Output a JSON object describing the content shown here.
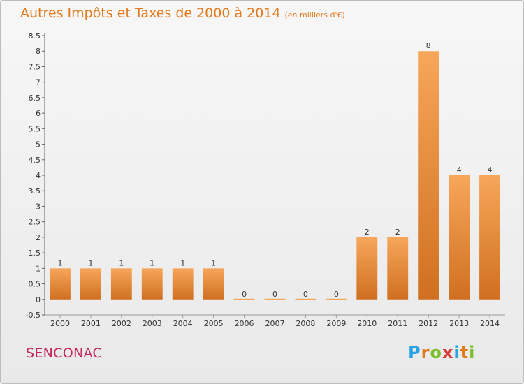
{
  "header": {
    "title": "Autres Impôts et Taxes de 2000 à 2014",
    "unit": "(en milliers d'€)"
  },
  "footer": {
    "commune": "SENCONAC",
    "brand_letters": [
      "P",
      "r",
      "o",
      "x",
      "i",
      "t",
      "i"
    ],
    "brand_colors": [
      "#2aa4e0",
      "#e2791b",
      "#7cbf2e",
      "#d63a3a",
      "#2aa4e0",
      "#e2791b",
      "#7cbf2e"
    ]
  },
  "colors": {
    "bar_top": "#f7a65b",
    "bar_bottom": "#d07020",
    "title": "#e2791b",
    "commune": "#c2255c"
  },
  "chart_data": {
    "type": "bar",
    "title": "Autres Impôts et Taxes de 2000 à 2014",
    "subtitle": "(en milliers d'€)",
    "categories": [
      "2000",
      "2001",
      "2002",
      "2003",
      "2004",
      "2005",
      "2006",
      "2007",
      "2008",
      "2009",
      "2010",
      "2011",
      "2012",
      "2013",
      "2014"
    ],
    "values": [
      1,
      1,
      1,
      1,
      1,
      1,
      0,
      0,
      0,
      0,
      2,
      2,
      8,
      4,
      4
    ],
    "value_labels": [
      "1",
      "1",
      "1",
      "1",
      "1",
      "1",
      "0",
      "0",
      "0",
      "0",
      "2",
      "2",
      "8",
      "4",
      "4"
    ],
    "yticks": [
      "-0.5",
      "0",
      "0.5",
      "1",
      "1.5",
      "2",
      "2.5",
      "3",
      "3.5",
      "4",
      "4.5",
      "5",
      "5.5",
      "6",
      "6.5",
      "7",
      "7.5",
      "8",
      "8.5"
    ],
    "ylim": [
      -0.5,
      8.5
    ],
    "grid": false,
    "legend": "none"
  }
}
